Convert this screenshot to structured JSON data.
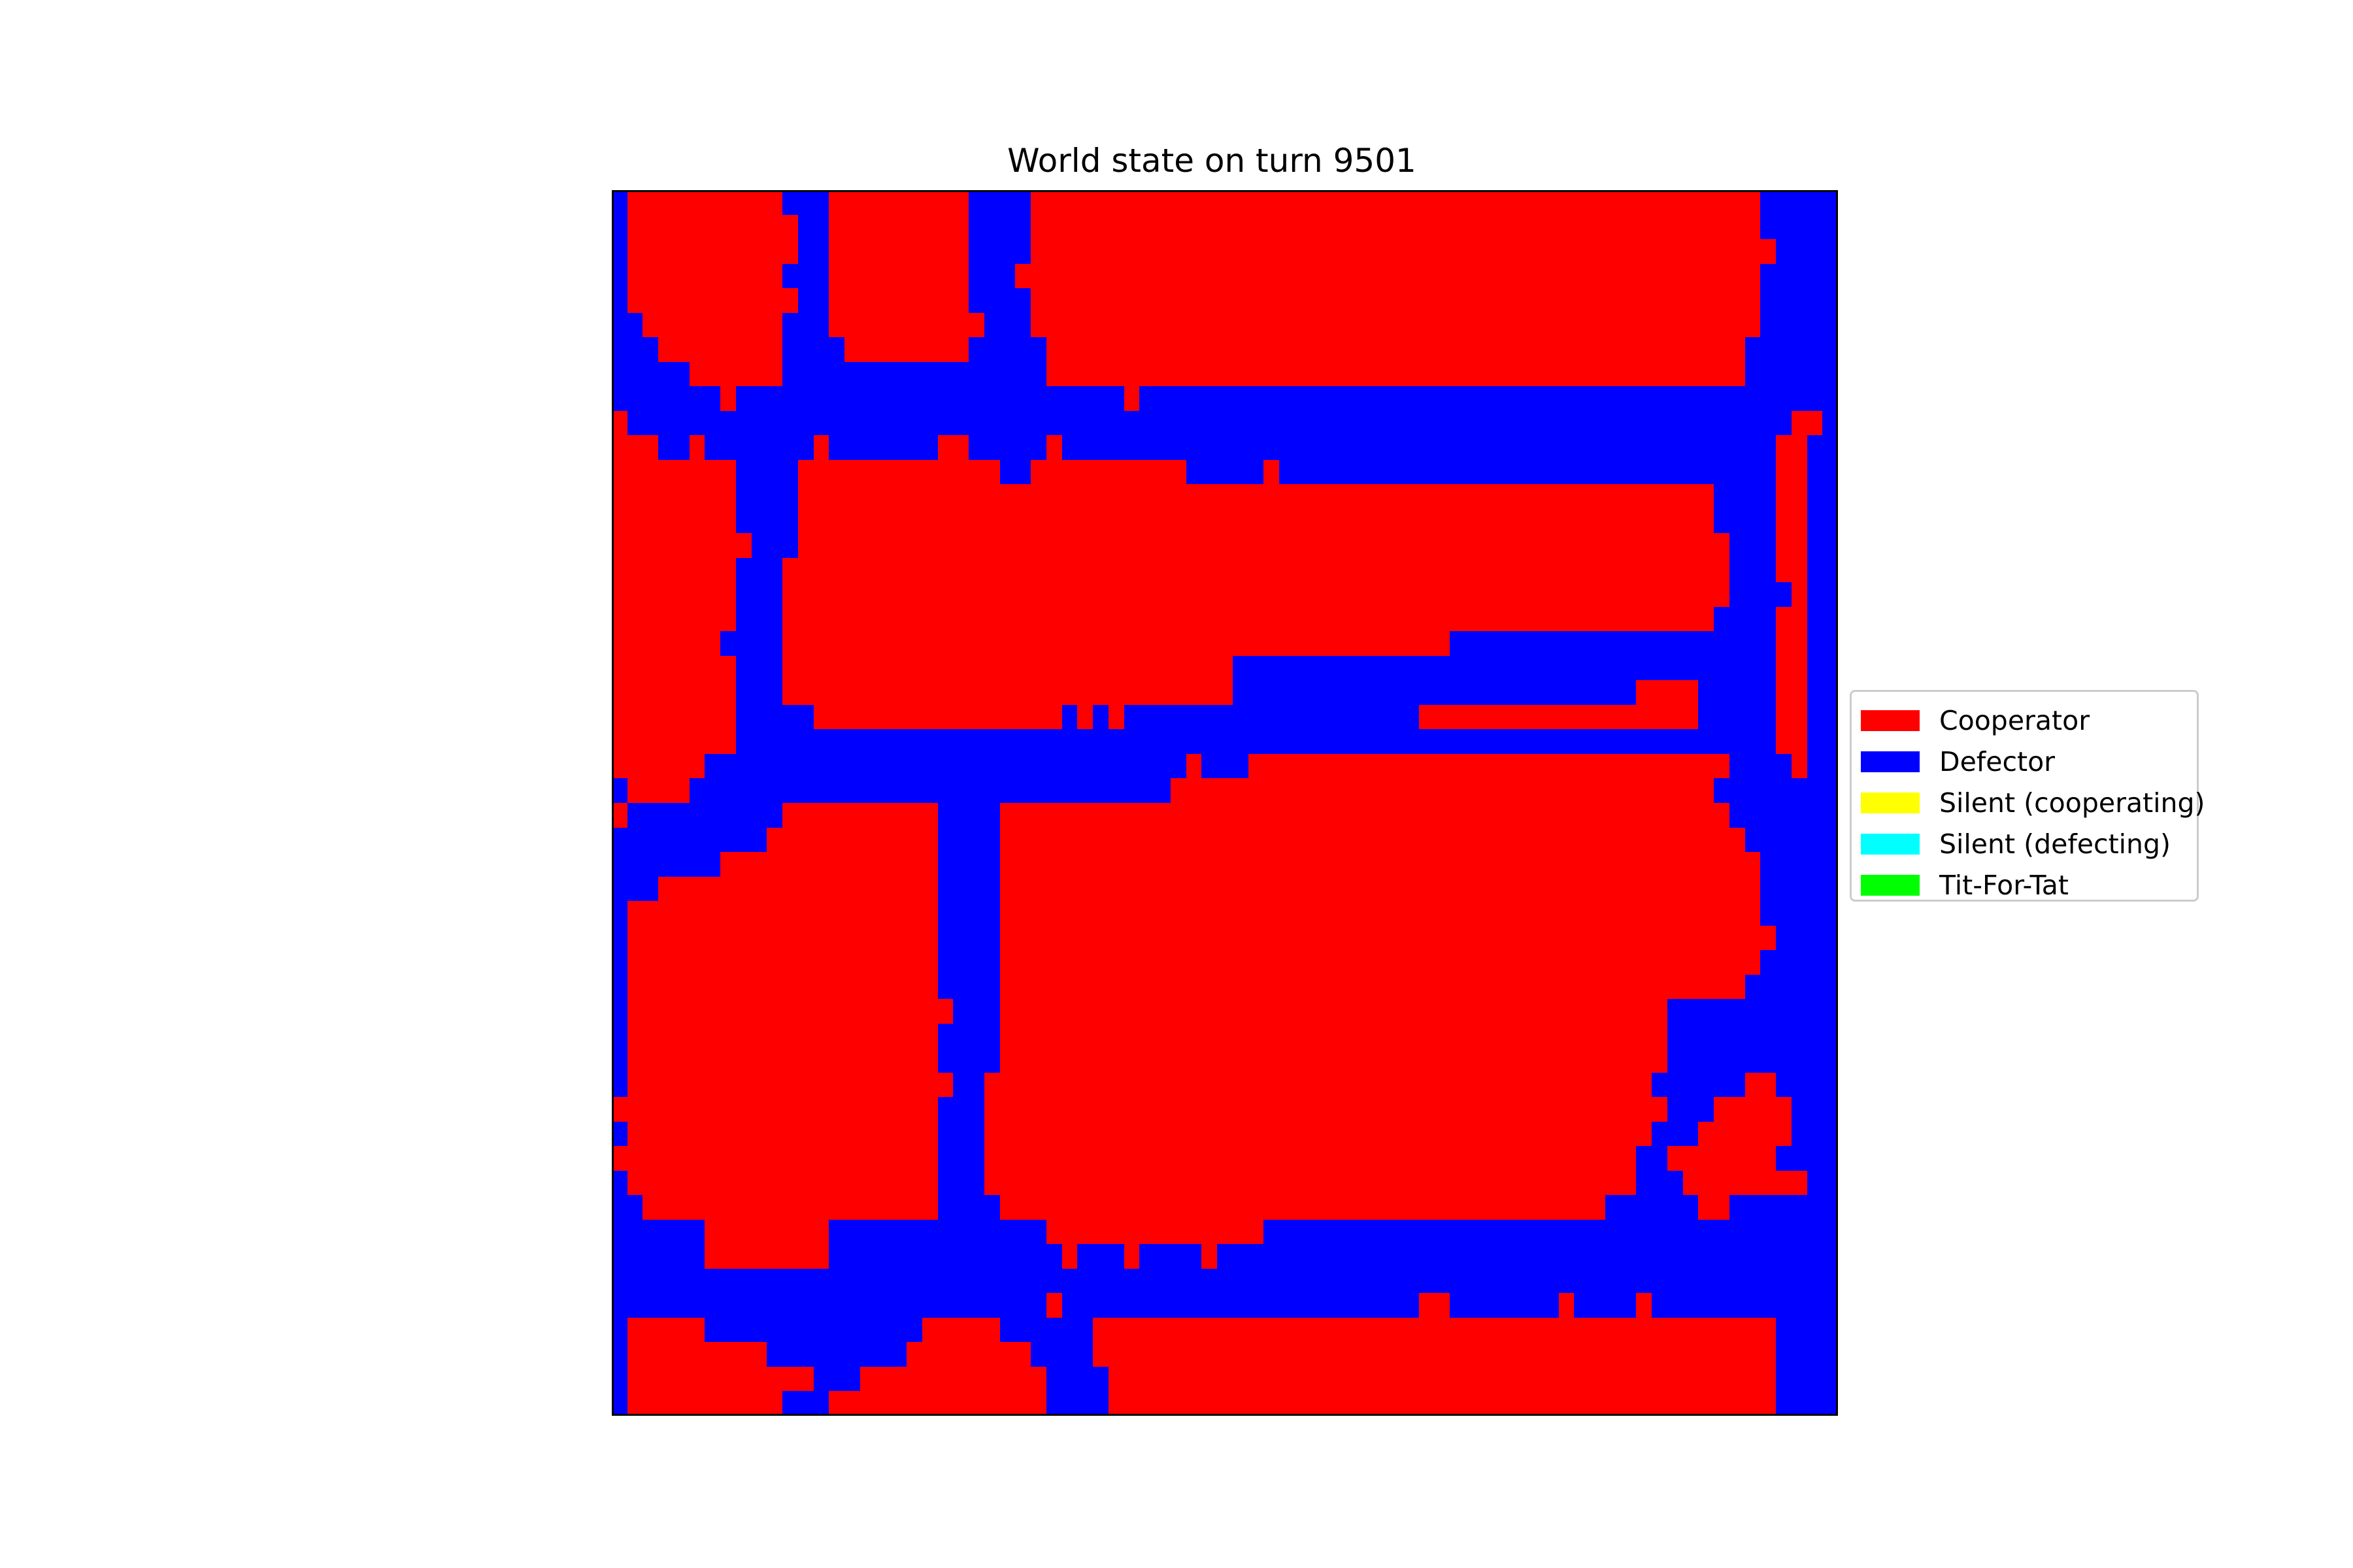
{
  "chart_data": {
    "type": "heatmap",
    "title": "World state on turn 9501",
    "grid": false,
    "axes_visible": false,
    "legend_position": "right",
    "legend": [
      {
        "label": "Cooperator",
        "color": "#ff0000"
      },
      {
        "label": "Defector",
        "color": "#0000ff"
      },
      {
        "label": "Silent (cooperating)",
        "color": "#ffff00"
      },
      {
        "label": "Silent (defecting)",
        "color": "#00ffff"
      },
      {
        "label": "Tit-For-Tat",
        "color": "#00ff00"
      }
    ],
    "state_colors": {
      "R": "#ff0000",
      "B": "#0000ff"
    },
    "rows": [
      "BRRRRRRRRRRBBBRRRRRRRRRBBBBRRRRRRRRRRRRRRRRRRRRRRRRRRRRRRRRRRRRRRRRRRRRRRRBBB",
      "BRRRRRRRRRRRBBRRRRRRRRRBBBBRRRRRRRRRRRRRRRRRRRRRRRRRRRRRRRRRRRRRRRRRRRRRRRBBB",
      "BRRRRRRRRRRRBBRRRRRRRRRBBBBRRRRRRRRRRRRRRRRRRRRRRRRRRRRRRRRRRRRRRRRRRRRRRRRBB",
      "BRRRRRRRRRRBBBRRRRRRRRRBBBRRRRRRRRRRRRRRRRRRRRRRRRRRRRRRRRRRRRRRRRRRRRRRRRBBB",
      "BRRRRRRRRRRRBBRRRRRRRRRBBBBRRRRRRRRRRRRRRRRRRRRRRRRRRRRRRRRRRRRRRRRRRRRRRRBBB",
      "BBRRRRRRRRRBBBRRRRRRRRRRBBBRRRRRRRRRRRRRRRRRRRRRRRRRRRRRRRRRRRRRRRRRRRRRRRBBB",
      "BBBRRRRRRRRBBBBRRRRRRRRBBBBBRRRRRRRRRRRRRRRRRRRRRRRRRRRRRRRRRRRRRRRRRRRRRBBBB",
      "BBBBBRRRRRRBBBBBBBBBBBBBBBBBRRRRRRRRRRRRRRRRRRRRRRRRRRRRRRRRRRRRRRRRRRRRRBBBB",
      "BBBBBBBRBBBBBBBBBBBBBBBBBBBBBBBBBRBBBBBBBBBBBBBBBBBBBBBBBBBBBBBBBBBBBBBBBBBBB",
      "RBBBBBBBBBBBBBBBBBBBBBBBBBBBBBBBBBBBBBBBBBBBBBBBBBBBBBBBBBBBBBBBBBBBBBBBBBBBRR",
      "RRRBBRBBBBBBBRBBBBBBBRRBBBBBRBBBBBBBBBBBBBBBBBBBBBBBBBBBBBBBBBBBBBBBBBBBBBBRR",
      "RRRRRRRRBBBBRRRRRRRRRRRRRBBRRRRRRRRRRBBBBBRBBBBBBBBBBBBBBBBBBBBBBBBBBBBBBBBRR",
      "RRRRRRRRBBBBRRRRRRRRRRRRRRRRRRRRRRRRRRRRRRRRRRRRRRRRRRRRRRRRRRRRRRRRRRRBBBBRR",
      "RRRRRRRRBBBBRRRRRRRRRRRRRRRRRRRRRRRRRRRRRRRRRRRRRRRRRRRRRRRRRRRRRRRRRRRBBBBRR",
      "RRRRRRRRRBBBRRRRRRRRRRRRRRRRRRRRRRRRRRRRRRRRRRRRRRRRRRRRRRRRRRRRRRRRRRRRBBBRR",
      "RRRRRRRRBBBRRRRRRRRRRRRRRRRRRRRRRRRRRRRRRRRRRRRRRRRRRRRRRRRRRRRRRRRRRRRRBBBRR",
      "RRRRRRRRBBBRRRRRRRRRRRRRRRRRRRRRRRRRRRRRRRRRRRRRRRRRRRRRRRRRRRRRRRRRRRRRBBBBR",
      "RRRRRRRRBBBRRRRRRRRRRRRRRRRRRRRRRRRRRRRRRRRRRRRRRRRRRRRRRRRRRRRRRRRRRRRBBBBRR",
      "RRRRRRRBBBBRRRRRRRRRRRRRRRRRRRRRRRRRRRRRRRRRRRRRRRRRRRBBBBBBBBBBBBBBBBBBBBBRR",
      "RRRRRRRRBBBRRRRRRRRRRRRRRRRRRRRRRRRRRRRRBBBBBBBBBBBBBBBBBBBBBBBBBBBBBBBBBBBRR",
      "RRRRRRRRBBBRRRRRRRRRRRRRRRRRRRRRRRRRRRRRBBBBBBBBBBBBBBBBBBBBBBBBBBRRRRBBBBBRR",
      "RRRRRRRRBBBBBRRRRRRRRRRRRRRRRBRBRBBBBBBBBBBBBBBBBBBBRRRRRRRRRRRRRRRRRRBBBBBRR",
      "RRRRRRRRBBBBBBBBBBBBBBBBBBBBBBBBBBBBBBBBBBBBBBBBBBBBBBBBBBBBBBBBBBBBBBBBBBBRR",
      "RRRRRRBBBBBBBBBBBBBBBBBBBBBBBBBBBBBBBRBBBRRRRRRRRRRRRRRRRRRRRRRRRRRRRRRRBBBBR",
      "BRRRRBBBBBBBBBBBBBBBBBBBBBBBBBBBBBBBRRRRRRRRRRRRRRRRRRRRRRRRRRRRRRRRRRRBBBBBB",
      "RBBBBBBBBBBRRRRRRRRRRBBBBRRRRRRRRRRRRRRRRRRRRRRRRRRRRRRRRRRRRRRRRRRRRRRRBBBB",
      "BBBBBBBBBBRRRRRRRRRRRBBBBRRRRRRRRRRRRRRRRRRRRRRRRRRRRRRRRRRRRRRRRRRRRRRRRBBBB",
      "BBBBBBBRRRRRRRRRRRRRRBBBBRRRRRRRRRRRRRRRRRRRRRRRRRRRRRRRRRRRRRRRRRRRRRRRRRBBB",
      "BBBRRRRRRRRRRRRRRRRRRBBBBRRRRRRRRRRRRRRRRRRRRRRRRRRRRRRRRRRRRRRRRRRRRRRRRRBBB",
      "BRRRRRRRRRRRRRRRRRRRRBBBBRRRRRRRRRRRRRRRRRRRRRRRRRRRRRRRRRRRRRRRRRRRRRRRRRBBB",
      "BRRRRRRRRRRRRRRRRRRRRBBBBRRRRRRRRRRRRRRRRRRRRRRRRRRRRRRRRRRRRRRRRRRRRRRRRRRBB",
      "BRRRRRRRRRRRRRRRRRRRRBBBBRRRRRRRRRRRRRRRRRRRRRRRRRRRRRRRRRRRRRRRRRRRRRRRRRBBB",
      "BRRRRRRRRRRRRRRRRRRRRBBBBRRRRRRRRRRRRRRRRRRRRRRRRRRRRRRRRRRRRRRRRRRRRRRRRBBBB",
      "BRRRRRRRRRRRRRRRRRRRRRBBBRRRRRRRRRRRRRRRRRRRRRRRRRRRRRRRRRRRRRRRRRRRBBBBBBBBB",
      "BRRRRRRRRRRRRRRRRRRRRBBBBRRRRRRRRRRRRRRRRRRRRRRRRRRRRRRRRRRRRRRRRRRRBBBBBBBBB",
      "BRRRRRRRRRRRRRRRRRRRRBBBBRRRRRRRRRRRRRRRRRRRRRRRRRRRRRRRRRRRRRRRRRRRBBBBBBBBB",
      "BRRRRRRRRRRRRRRRRRRRRRBBRRRRRRRRRRRRRRRRRRRRRRRRRRRRRRRRRRRRRRRRRRRBBBBBBRRBBB",
      "RRRRRRRRRRRRRRRRRRRRRBBBRRRRRRRRRRRRRRRRRRRRRRRRRRRRRRRRRRRRRRRRRRRRBBBRRRRRBBB",
      "BRRRRRRRRRRRRRRRRRRRRBBBRRRRRRRRRRRRRRRRRRRRRRRRRRRRRRRRRRRRRRRRRRRBBBRRRRRRBBB",
      "RRRRRRRRRRRRRRRRRRRRRBBBRRRRRRRRRRRRRRRRRRRRRRRRRRRRRRRRRRRRRRRRRRBBRRRRRRRBBB",
      "BRRRRRRRRRRRRRRRRRRRRBBBRRRRRRRRRRRRRRRRRRRRRRRRRRRRRRRRRRRRRRRRRRBBBRRRRRRRRB",
      "BBRRRRRRRRRRRRRRRRRRRBBBBRRRRRRRRRRRRRRRRRRRRRRRRRRRRRRRRRRRRRRRBBBBBBRRBBBBBB",
      "BBBBBBRRRRRRRRBBBBBBBBBBBBBBRRRRRRRRRRRRRRBBBBBBBBBBBBBBBBBBBBBBBBBBBBBBBBBBBB",
      "BBBBBBRRRRRRRRBBBBBBBBBBBBBBBRBBBRBBBBRBBBBBBBBBBBBBBBBBBBBBBBBBBBBBBBBBBBBBB",
      "BBBBBBBBBBBBBBBBBBBBBBBBBBBBBBBBBBBBBBBBBBBBBBBBBBBBBBBBBBBBBBBBBBBBBBBBBBBB",
      "BBBBBBBBBBBBBBBBBBBBBBBBBBBBRBBBBBBBBBBBBBBBBBBBBBBBRRBBBBBBBRBBBBRBBBBBB",
      "BRRRRRBBBBBBBBBBBBBBRRRRRBBBBBBRRRRRRRRRRRRRRRRRRRRRRRRRRRRRRRRRRRRRRRRRRRRBB",
      "BRRRRRRRRRBBBBBBBBBRRRRRRRRBBBBRRRRRRRRRRRRRRRRRRRRRRRRRRRRRRRRRRRRRRRRRRRRBB",
      "BRRRRRRRRRRRRBBBRRRRRRRRRRRRBBBBRRRRRRRRRRRRRRRRRRRRRRRRRRRRRRRRRRRRRRRRRRRBB",
      "BRRRRRRRRRRBBBRRRRRRRRRRRRRRBBBBRRRRRRRRRRRRRRRRRRRRRRRRRRRRRRRRRRRRRRRRRRRBB"
    ]
  }
}
